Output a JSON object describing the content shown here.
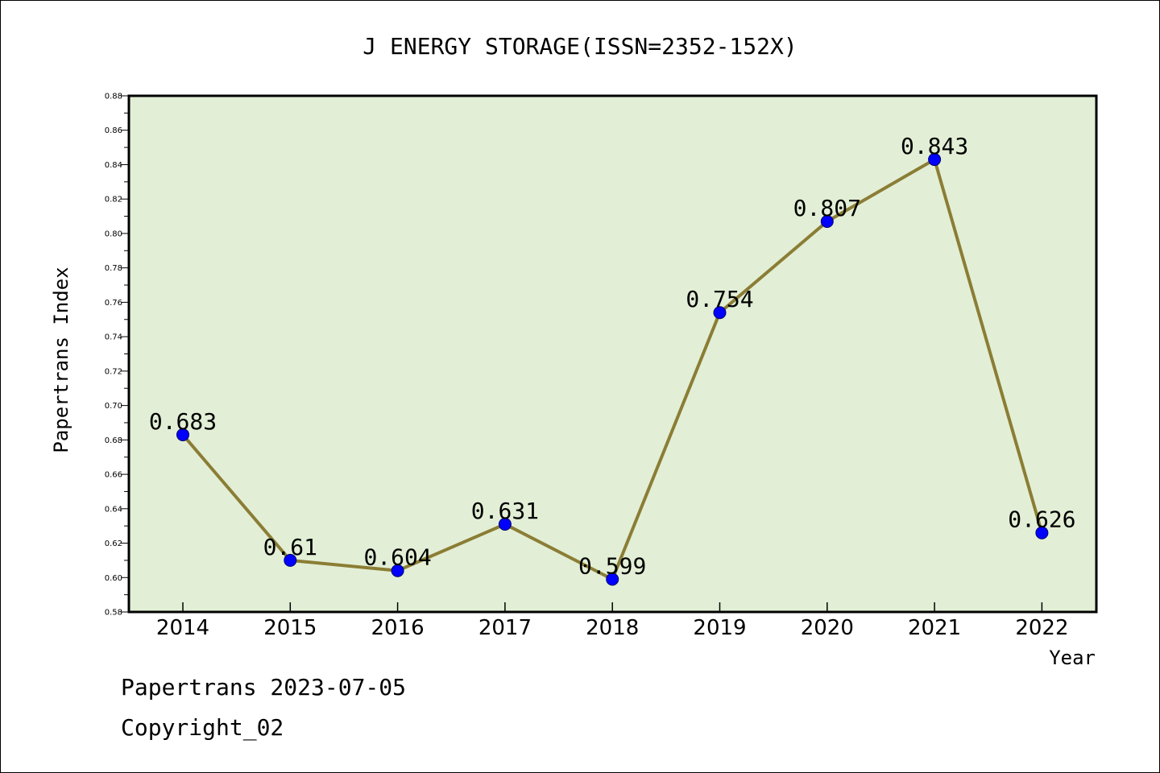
{
  "chart_data": {
    "type": "line",
    "title": "J ENERGY STORAGE(ISSN=2352-152X)",
    "xlabel": "Year",
    "ylabel": "Papertrans Index",
    "categories": [
      "2014",
      "2015",
      "2016",
      "2017",
      "2018",
      "2019",
      "2020",
      "2021",
      "2022"
    ],
    "series": [
      {
        "values": [
          0.683,
          0.61,
          0.604,
          0.631,
          0.599,
          0.754,
          0.807,
          0.843,
          0.626
        ],
        "labels": [
          "0.683",
          "0.61",
          "0.604",
          "0.631",
          "0.599",
          "0.754",
          "0.807",
          "0.843",
          "0.626"
        ]
      }
    ],
    "ylim": [
      0.58,
      0.88
    ],
    "yticks": [
      "0.58",
      "0.60",
      "0.62",
      "0.64",
      "0.66",
      "0.68",
      "0.70",
      "0.72",
      "0.74",
      "0.76",
      "0.78",
      "0.80",
      "0.82",
      "0.84",
      "0.86",
      "0.88"
    ],
    "grid": false,
    "colors": {
      "plot_background": "#e2efd6",
      "line": "#8b7d35",
      "marker": "#0000ff"
    }
  },
  "footer": {
    "line1": "Papertrans 2023-07-05",
    "line2": "Copyright_02"
  }
}
